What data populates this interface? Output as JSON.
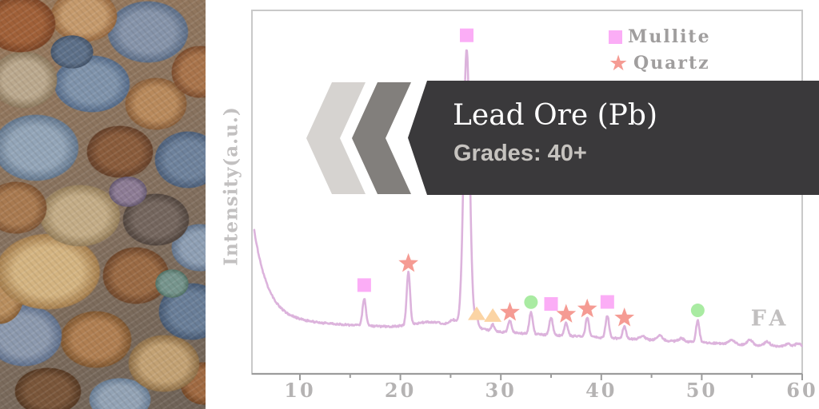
{
  "photo": {
    "subject": "pile of multicolored lead ore rocks"
  },
  "banner": {
    "title": "Lead Ore (Pb)",
    "subtitle": "Grades: 40+",
    "background_color": "#3a393b",
    "title_color": "#ffffff",
    "subtitle_color": "#c6c3bf",
    "chevrons": [
      {
        "color": "#d6d3d0"
      },
      {
        "color": "#827f7c"
      }
    ]
  },
  "chart_data": {
    "type": "line",
    "title": "",
    "xlabel": "",
    "ylabel": "Intensity(a.u.)",
    "xlim": [
      5.5,
      60
    ],
    "x_ticks": [
      10,
      20,
      30,
      40,
      50,
      60
    ],
    "x_minor_ticks": [
      15,
      25,
      35,
      45,
      55
    ],
    "grid": false,
    "legend_position": "top-right",
    "legend": [
      {
        "label": "Mullite",
        "marker": "square",
        "color": "#fbadf6"
      },
      {
        "label": "Quartz",
        "marker": "star",
        "color": "#f59b93"
      }
    ],
    "annotation": "FA",
    "line_color": "#dcb3dc",
    "frame_color": "#c9c9c9",
    "axis_color": "#9c9c9c",
    "marker_colors": {
      "square": "#fbadf6",
      "star": "#f59b93",
      "triangle": "#fbd4a4",
      "circle": "#a9eba2"
    },
    "series": [
      {
        "name": "FA",
        "peaks": [
          {
            "two_theta": 16.4,
            "marker": "square",
            "phase": "Mullite",
            "rel_intensity": 34
          },
          {
            "two_theta": 20.8,
            "marker": "star",
            "phase": "Quartz",
            "rel_intensity": 66
          },
          {
            "two_theta": 26.6,
            "marker": "square",
            "phase": "Mullite",
            "rel_intensity": 336
          },
          {
            "two_theta": 27.6,
            "marker": "triangle",
            "phase": "",
            "rel_intensity": 9
          },
          {
            "two_theta": 29.2,
            "marker": "triangle",
            "phase": "",
            "rel_intensity": 8
          },
          {
            "two_theta": 30.9,
            "marker": "star",
            "phase": "Quartz",
            "rel_intensity": 15
          },
          {
            "two_theta": 33.0,
            "marker": "circle",
            "phase": "",
            "rel_intensity": 27
          },
          {
            "two_theta": 35.0,
            "marker": "square",
            "phase": "Mullite",
            "rel_intensity": 22
          },
          {
            "two_theta": 36.5,
            "marker": "star",
            "phase": "Quartz",
            "rel_intensity": 16
          },
          {
            "two_theta": 38.6,
            "marker": "star",
            "phase": "Quartz",
            "rel_intensity": 24
          },
          {
            "two_theta": 40.6,
            "marker": "square",
            "phase": "Mullite",
            "rel_intensity": 28
          },
          {
            "two_theta": 42.3,
            "marker": "star",
            "phase": "Quartz",
            "rel_intensity": 15
          },
          {
            "two_theta": 49.6,
            "marker": "circle",
            "phase": "",
            "rel_intensity": 27
          }
        ],
        "minor_bumps": [
          [
            25.2,
            5
          ],
          [
            44.1,
            4
          ],
          [
            45.8,
            6
          ],
          [
            48.0,
            4
          ],
          [
            53.0,
            5
          ],
          [
            54.8,
            6
          ],
          [
            56.5,
            5
          ],
          [
            58.6,
            4
          ],
          [
            59.6,
            5
          ]
        ]
      }
    ]
  }
}
